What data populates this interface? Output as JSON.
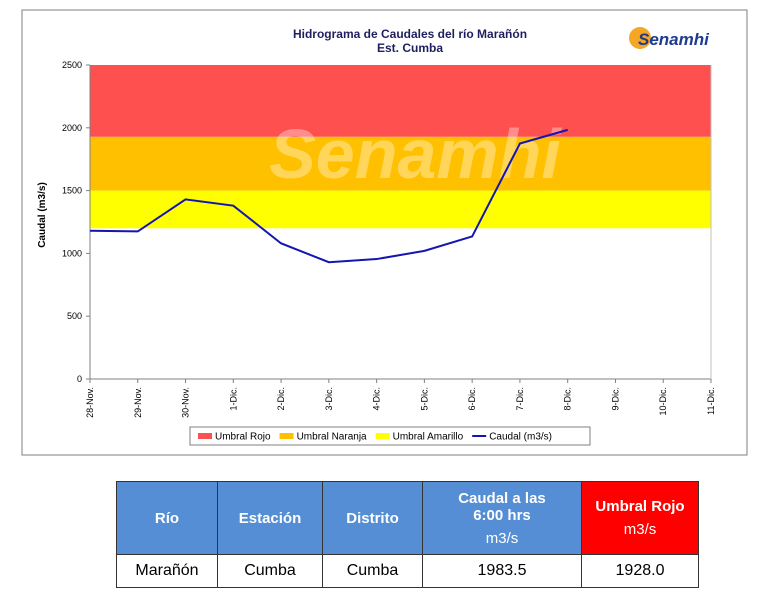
{
  "chart_data": {
    "type": "line",
    "title": "Hidrograma de Caudales del río Marañón",
    "subtitle": "Est. Cumba",
    "logo_text": "Senamhi",
    "watermark": "Senamhi",
    "y_label": "Caudal (m3/s)",
    "categories": [
      "28-Nov.",
      "29-Nov.",
      "30-Nov.",
      "1-Dic.",
      "2-Dic.",
      "3-Dic.",
      "4-Dic.",
      "5-Dic.",
      "6-Dic.",
      "7-Dic.",
      "8-Dic.",
      "9-Dic.",
      "10-Dic.",
      "11-Dic."
    ],
    "thresholds": [
      {
        "name": "Umbral Rojo",
        "color": "#ff5050",
        "from": 1928,
        "to": 2500
      },
      {
        "name": "Umbral Naranja",
        "color": "#ffc000",
        "from": 1500,
        "to": 1928
      },
      {
        "name": "Umbral Amarillo",
        "color": "#ffff00",
        "from": 1200,
        "to": 1500
      }
    ],
    "series": [
      {
        "name": "Caudal (m3/s)",
        "color": "#1515b0",
        "values": [
          1180,
          1175,
          1430,
          1380,
          1080,
          930,
          955,
          1020,
          1135,
          1875,
          1983.5,
          null,
          null,
          null
        ]
      }
    ],
    "ylim": [
      0,
      2500
    ],
    "yticks": [
      0,
      500,
      1000,
      1500,
      2000,
      2500
    ],
    "grid": false,
    "legend": "bottom"
  },
  "table": {
    "headers": [
      {
        "label": "Río"
      },
      {
        "label": "Estación"
      },
      {
        "label": "Distrito"
      },
      {
        "label": "Caudal a las 6:00 hrs",
        "unit": "m3/s"
      },
      {
        "label": "Umbral Rojo",
        "unit": "m3/s"
      }
    ],
    "rows": [
      [
        "Marañón",
        "Cumba",
        "Cumba",
        "1983.5",
        "1928.0"
      ]
    ]
  }
}
